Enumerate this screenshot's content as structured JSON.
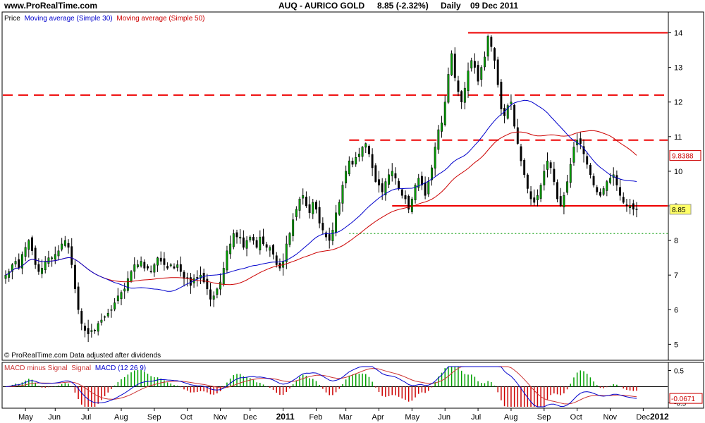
{
  "header": {
    "site": "www.ProRealTime.com",
    "instrument": "AUQ - AURICO GOLD",
    "change": "8.85 (-2.32%)",
    "period": "Daily",
    "date": "09 Dec 2011"
  },
  "legend": {
    "price": "Price",
    "ma30": "Moving average (Simple 30)",
    "ma50": "Moving average (Simple 50)"
  },
  "footer_note": "© ProRealTime.com  Data adjusted after dividends",
  "macd_legend": {
    "hist": "MACD minus Signal",
    "signal": "Signal",
    "macd": "MACD (12 26 9)"
  },
  "colors": {
    "ma30": "#0000cc",
    "ma50": "#cc0000",
    "up": "#00a000",
    "down": "#000000",
    "level_line": "#ee0000",
    "dotted_line": "#009900",
    "last_badge": "#ffff66"
  },
  "chart_data": [
    {
      "type": "candlestick",
      "ylim": [
        4.6,
        14.5
      ],
      "yticks": [
        5,
        6,
        7,
        8,
        9,
        10,
        11,
        12,
        13,
        14
      ],
      "last_price_label": "8.85",
      "ma50_last_label": "9.8388",
      "months": [
        {
          "label": "May",
          "idx": 6
        },
        {
          "label": "Jun",
          "idx": 15
        },
        {
          "label": "Jul",
          "idx": 25
        },
        {
          "label": "Aug",
          "idx": 35
        },
        {
          "label": "Sep",
          "idx": 45
        },
        {
          "label": "Oct",
          "idx": 55
        },
        {
          "label": "Nov",
          "idx": 65
        },
        {
          "label": "Dec",
          "idx": 74
        },
        {
          "label": "2011",
          "idx": 84,
          "bold": true
        },
        {
          "label": "Feb",
          "idx": 94
        },
        {
          "label": "Mar",
          "idx": 103
        },
        {
          "label": "Apr",
          "idx": 113
        },
        {
          "label": "May",
          "idx": 123
        },
        {
          "label": "Jun",
          "idx": 133
        },
        {
          "label": "Jul",
          "idx": 143
        },
        {
          "label": "Aug",
          "idx": 153
        },
        {
          "label": "Sep",
          "idx": 163
        },
        {
          "label": "Oct",
          "idx": 173
        },
        {
          "label": "Nov",
          "idx": 183
        },
        {
          "label": "Dec",
          "idx": 193
        },
        {
          "label": "2012",
          "idx": 203,
          "bold": true
        }
      ],
      "closes": [
        7.0,
        7.1,
        7.3,
        7.4,
        7.2,
        7.6,
        7.8,
        8.0,
        7.7,
        7.3,
        7.1,
        7.2,
        7.4,
        7.5,
        7.5,
        7.6,
        7.7,
        7.9,
        8.0,
        7.8,
        7.3,
        6.6,
        6.0,
        5.6,
        5.4,
        5.3,
        5.4,
        5.4,
        5.6,
        5.7,
        5.8,
        5.9,
        6.0,
        6.2,
        6.4,
        6.5,
        6.6,
        6.9,
        7.1,
        7.3,
        7.3,
        7.4,
        7.2,
        7.2,
        7.1,
        7.3,
        7.5,
        7.4,
        7.3,
        7.2,
        7.3,
        7.2,
        7.3,
        7.1,
        6.9,
        6.9,
        6.7,
        6.9,
        6.9,
        7.0,
        6.8,
        6.6,
        6.3,
        6.4,
        6.6,
        6.8,
        7.2,
        7.7,
        7.9,
        8.2,
        8.1,
        8.1,
        7.8,
        8.0,
        8.1,
        8.0,
        7.8,
        8.1,
        7.9,
        7.8,
        7.8,
        7.6,
        7.3,
        7.2,
        7.4,
        7.9,
        8.2,
        8.6,
        8.9,
        9.2,
        9.3,
        9.0,
        8.8,
        9.1,
        8.9,
        8.5,
        8.3,
        8.1,
        8.0,
        8.3,
        8.8,
        9.1,
        9.6,
        10.0,
        10.3,
        10.2,
        10.4,
        10.5,
        10.7,
        10.8,
        10.5,
        10.1,
        9.7,
        9.6,
        9.4,
        9.7,
        9.9,
        10.0,
        9.8,
        9.5,
        9.3,
        9.2,
        8.9,
        9.2,
        9.6,
        9.8,
        9.6,
        9.3,
        9.7,
        10.1,
        10.7,
        11.2,
        11.4,
        12.0,
        12.8,
        13.4,
        12.7,
        12.3,
        12.0,
        12.4,
        12.9,
        13.2,
        13.0,
        12.6,
        13.0,
        13.3,
        13.9,
        13.6,
        13.2,
        12.5,
        11.8,
        11.6,
        11.9,
        12.0,
        11.3,
        10.8,
        10.3,
        9.9,
        9.5,
        9.2,
        9.1,
        9.3,
        9.6,
        10.0,
        10.3,
        10.1,
        9.7,
        9.2,
        9.0,
        9.3,
        9.7,
        10.2,
        10.7,
        10.9,
        10.8,
        10.5,
        10.2,
        9.9,
        9.6,
        9.4,
        9.3,
        9.5,
        9.7,
        9.8,
        9.9,
        9.6,
        9.3,
        9.1,
        9.0,
        9.0,
        8.9,
        8.9
      ],
      "levels": [
        {
          "value": 14.0,
          "style": "solid",
          "from_idx": 140,
          "to_idx": 205
        },
        {
          "value": 12.2,
          "style": "dashed",
          "from_idx": 0,
          "to_idx": 205
        },
        {
          "value": 10.9,
          "style": "dashed",
          "from_idx": 104,
          "to_idx": 205
        },
        {
          "value": 9.0,
          "style": "solid",
          "from_idx": 117,
          "to_idx": 205
        },
        {
          "value": 8.2,
          "style": "dotted",
          "from_idx": 104,
          "to_idx": 205
        }
      ]
    },
    {
      "type": "macd",
      "yticks": [
        {
          "value": 0.5,
          "label": "0.5"
        },
        {
          "value": -0.5,
          "label": "-0.5"
        }
      ],
      "ylim": [
        -0.62,
        0.62
      ],
      "last_value_label": "-0.0671"
    }
  ]
}
